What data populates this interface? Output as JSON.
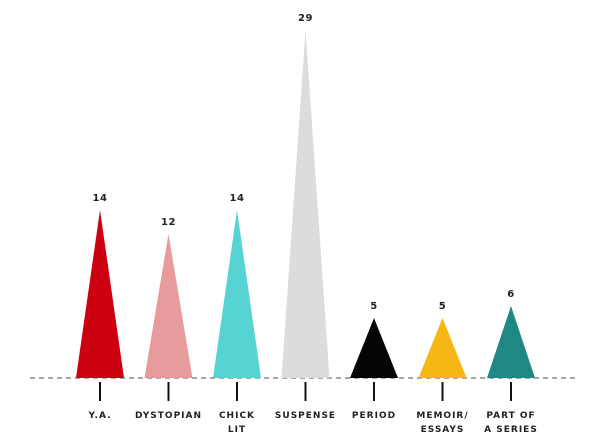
{
  "chart_data": {
    "type": "bar",
    "mark_shape": "triangle",
    "categories": [
      "Y.A.",
      "DYSTOPIAN",
      "CHICK\nLIT",
      "SUSPENSE",
      "PERIOD",
      "MEMOIR/\nESSAYS",
      "PART OF\nA SERIES"
    ],
    "values": [
      14,
      12,
      14,
      29,
      5,
      5,
      6
    ],
    "colors": [
      "#cc0010",
      "#e89b9d",
      "#57d3d3",
      "#dcdcdc",
      "#050505",
      "#f6b614",
      "#1f8882"
    ]
  }
}
